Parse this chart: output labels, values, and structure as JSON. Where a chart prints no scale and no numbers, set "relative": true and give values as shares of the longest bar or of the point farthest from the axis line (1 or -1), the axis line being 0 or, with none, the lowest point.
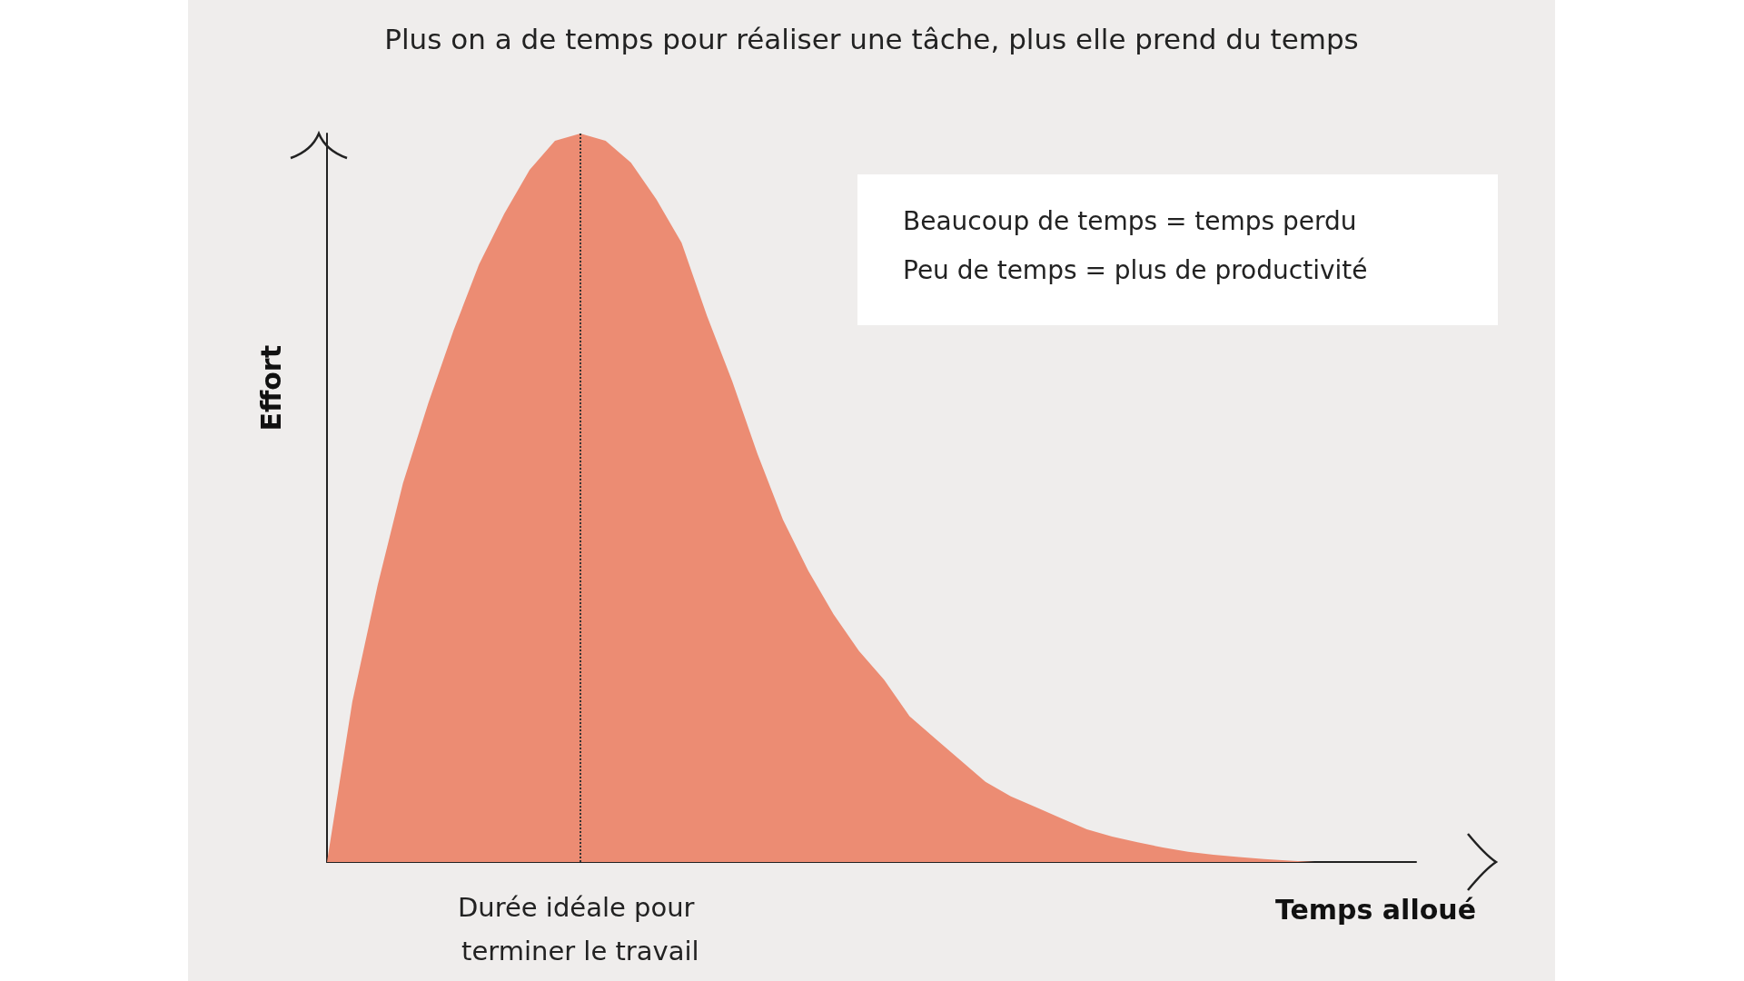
{
  "chart_data": {
    "type": "area",
    "title": "Plus on a de temps pour réaliser une tâche, plus elle prend du temps",
    "xlabel": "Temps alloué",
    "ylabel": "Effort",
    "relative": true,
    "color": "#ec8c73",
    "categories": [
      null,
      null,
      null,
      null,
      null,
      null,
      null,
      null,
      null,
      null,
      null,
      null,
      null,
      null,
      null,
      null,
      null,
      null,
      null,
      null,
      null,
      null,
      null,
      null,
      null,
      null,
      null,
      null,
      null,
      null,
      null,
      null,
      null,
      null,
      null,
      null,
      null,
      null,
      null,
      null,
      null,
      null,
      null,
      null
    ],
    "values": [
      0,
      0.22,
      0.38,
      0.52,
      0.63,
      0.73,
      0.82,
      0.89,
      0.95,
      0.99,
      1,
      0.99,
      0.96,
      0.91,
      0.85,
      0.75,
      0.66,
      0.56,
      0.47,
      0.4,
      0.34,
      0.29,
      0.25,
      0.2,
      0.17,
      0.14,
      0.11,
      0.09,
      0.075,
      0.06,
      0.045,
      0.035,
      0.027,
      0.02,
      0.014,
      0.01,
      0.007,
      0.004,
      0.002,
      0,
      0,
      0,
      0,
      0
    ],
    "annotations": [
      "Beaucoup de temps = temps perdu",
      "Peu de temps = plus de productivité",
      "Durée idéale pour terminer le travail"
    ],
    "grid": false
  }
}
